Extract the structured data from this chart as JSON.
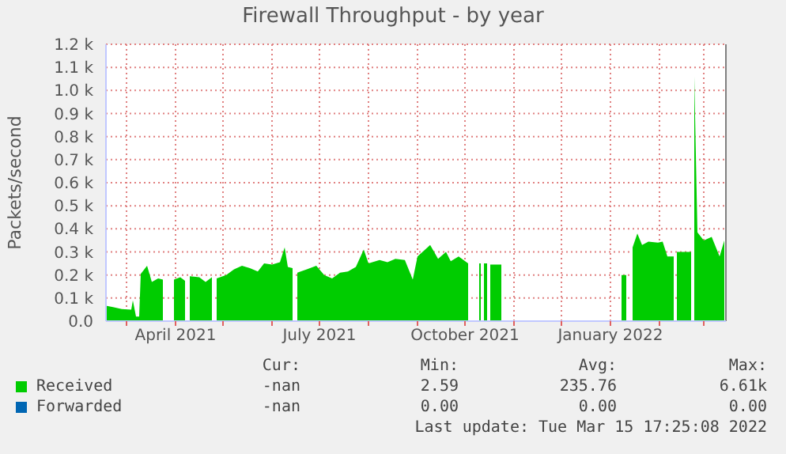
{
  "chart_data": {
    "type": "area",
    "title": "Firewall Throughput - by year",
    "ylabel": "Packets/second",
    "x": [
      "2021-02-16",
      "2021-02-21",
      "2021-02-26",
      "2021-03-04",
      "2021-03-05",
      "2021-03-07",
      "2021-03-09",
      "2021-03-10",
      "2021-03-14",
      "2021-03-17",
      "2021-03-21",
      "2021-03-24",
      "2021-03-25",
      "2021-03-31",
      "2021-04-04",
      "2021-04-07",
      "2021-04-08",
      "2021-04-10",
      "2021-04-16",
      "2021-04-20",
      "2021-04-24",
      "2021-04-25",
      "2021-04-27",
      "2021-05-03",
      "2021-05-08",
      "2021-05-13",
      "2021-05-18",
      "2021-05-23",
      "2021-05-27",
      "2021-06-01",
      "2021-06-06",
      "2021-06-09",
      "2021-06-11",
      "2021-06-14",
      "2021-06-15",
      "2021-06-17",
      "2021-06-23",
      "2021-06-29",
      "2021-07-04",
      "2021-07-09",
      "2021-07-14",
      "2021-07-19",
      "2021-07-24",
      "2021-07-29",
      "2021-08-01",
      "2021-08-08",
      "2021-08-13",
      "2021-08-18",
      "2021-08-24",
      "2021-08-29",
      "2021-09-01",
      "2021-09-09",
      "2021-09-14",
      "2021-09-19",
      "2021-09-22",
      "2021-09-27",
      "2021-10-03",
      "2021-10-04",
      "2021-10-10",
      "2021-10-11",
      "2021-10-12",
      "2021-10-13",
      "2021-10-15",
      "2021-10-16",
      "2021-10-17",
      "2021-10-24",
      "2021-10-25",
      "2022-01-08",
      "2022-01-11",
      "2022-01-12",
      "2022-01-15",
      "2022-01-18",
      "2022-01-21",
      "2022-01-25",
      "2022-01-31",
      "2022-02-03",
      "2022-02-06",
      "2022-02-10",
      "2022-02-11",
      "2022-02-12",
      "2022-02-21",
      "2022-02-22",
      "2022-02-23",
      "2022-02-25",
      "2022-03-01",
      "2022-03-06",
      "2022-03-11",
      "2022-03-14"
    ],
    "series": [
      {
        "name": "Received",
        "color": "#00cc00",
        "values": [
          67,
          60,
          52,
          50,
          90,
          20,
          20,
          205,
          240,
          170,
          185,
          180,
          null,
          180,
          190,
          175,
          null,
          195,
          190,
          170,
          190,
          null,
          185,
          200,
          225,
          240,
          230,
          215,
          250,
          245,
          255,
          320,
          235,
          230,
          null,
          210,
          225,
          240,
          200,
          185,
          210,
          215,
          235,
          310,
          250,
          265,
          255,
          270,
          265,
          180,
          280,
          330,
          270,
          300,
          260,
          280,
          250,
          null,
          250,
          250,
          null,
          250,
          250,
          null,
          245,
          245,
          null,
          200,
          200,
          null,
          320,
          380,
          330,
          345,
          340,
          345,
          280,
          280,
          null,
          300,
          300,
          null,
          1060,
          385,
          350,
          365,
          280,
          350
        ]
      },
      {
        "name": "Forwarded",
        "color": "#0066b3",
        "values": [
          null,
          null,
          null,
          null,
          null,
          null,
          null,
          null,
          null,
          null,
          null,
          null,
          null,
          null,
          null,
          null,
          null,
          null,
          null,
          null,
          null,
          null,
          null,
          null,
          null,
          null,
          null,
          null,
          null,
          null,
          null,
          null,
          null,
          null,
          null,
          null,
          null,
          null,
          null,
          null,
          null,
          null,
          null,
          null,
          null,
          null,
          null,
          null,
          null,
          null,
          null,
          null,
          null,
          null,
          null,
          null,
          null,
          null,
          null,
          null,
          null,
          null,
          null,
          null,
          null,
          null,
          null,
          null,
          null,
          null,
          null,
          null,
          null,
          null,
          null,
          null,
          null,
          null,
          null,
          null,
          null,
          null,
          null,
          null,
          null,
          null,
          null,
          null
        ]
      }
    ],
    "xlim": [
      "2021-02-16",
      "2022-03-15"
    ],
    "xticks": [
      {
        "value": "2021-03-01",
        "label": null
      },
      {
        "value": "2021-04-01",
        "label": "April 2021"
      },
      {
        "value": "2021-05-01",
        "label": null
      },
      {
        "value": "2021-06-01",
        "label": null
      },
      {
        "value": "2021-07-01",
        "label": "July 2021"
      },
      {
        "value": "2021-08-01",
        "label": null
      },
      {
        "value": "2021-09-01",
        "label": null
      },
      {
        "value": "2021-10-01",
        "label": "October 2021"
      },
      {
        "value": "2021-11-01",
        "label": null
      },
      {
        "value": "2021-12-01",
        "label": null
      },
      {
        "value": "2022-01-01",
        "label": "January 2022"
      },
      {
        "value": "2022-02-01",
        "label": null
      },
      {
        "value": "2022-03-01",
        "label": null
      }
    ],
    "ylim": [
      0,
      1200
    ],
    "yticks": [
      {
        "value": 0,
        "label": "0.0"
      },
      {
        "value": 100,
        "label": "0.1 k"
      },
      {
        "value": 200,
        "label": "0.2 k"
      },
      {
        "value": 300,
        "label": "0.3 k"
      },
      {
        "value": 400,
        "label": "0.4 k"
      },
      {
        "value": 500,
        "label": "0.5 k"
      },
      {
        "value": 600,
        "label": "0.6 k"
      },
      {
        "value": 700,
        "label": "0.7 k"
      },
      {
        "value": 800,
        "label": "0.8 k"
      },
      {
        "value": 900,
        "label": "0.9 k"
      },
      {
        "value": 1000,
        "label": "1.0 k"
      },
      {
        "value": 1100,
        "label": "1.1 k"
      },
      {
        "value": 1200,
        "label": "1.2 k"
      }
    ],
    "ref_lines": [
      {
        "axis": "x",
        "value": "2022-03-15",
        "color": "#808080"
      }
    ],
    "grid": true,
    "legend": "bottom",
    "annotations": [
      "Cur:",
      "Min:",
      "Avg:",
      "Max:",
      "-nan",
      "2.59",
      "235.76",
      "6.61k",
      "-nan",
      "0.00",
      "0.00",
      "0.00",
      "Last update: Tue Mar 15 17:25:08 2022"
    ]
  }
}
